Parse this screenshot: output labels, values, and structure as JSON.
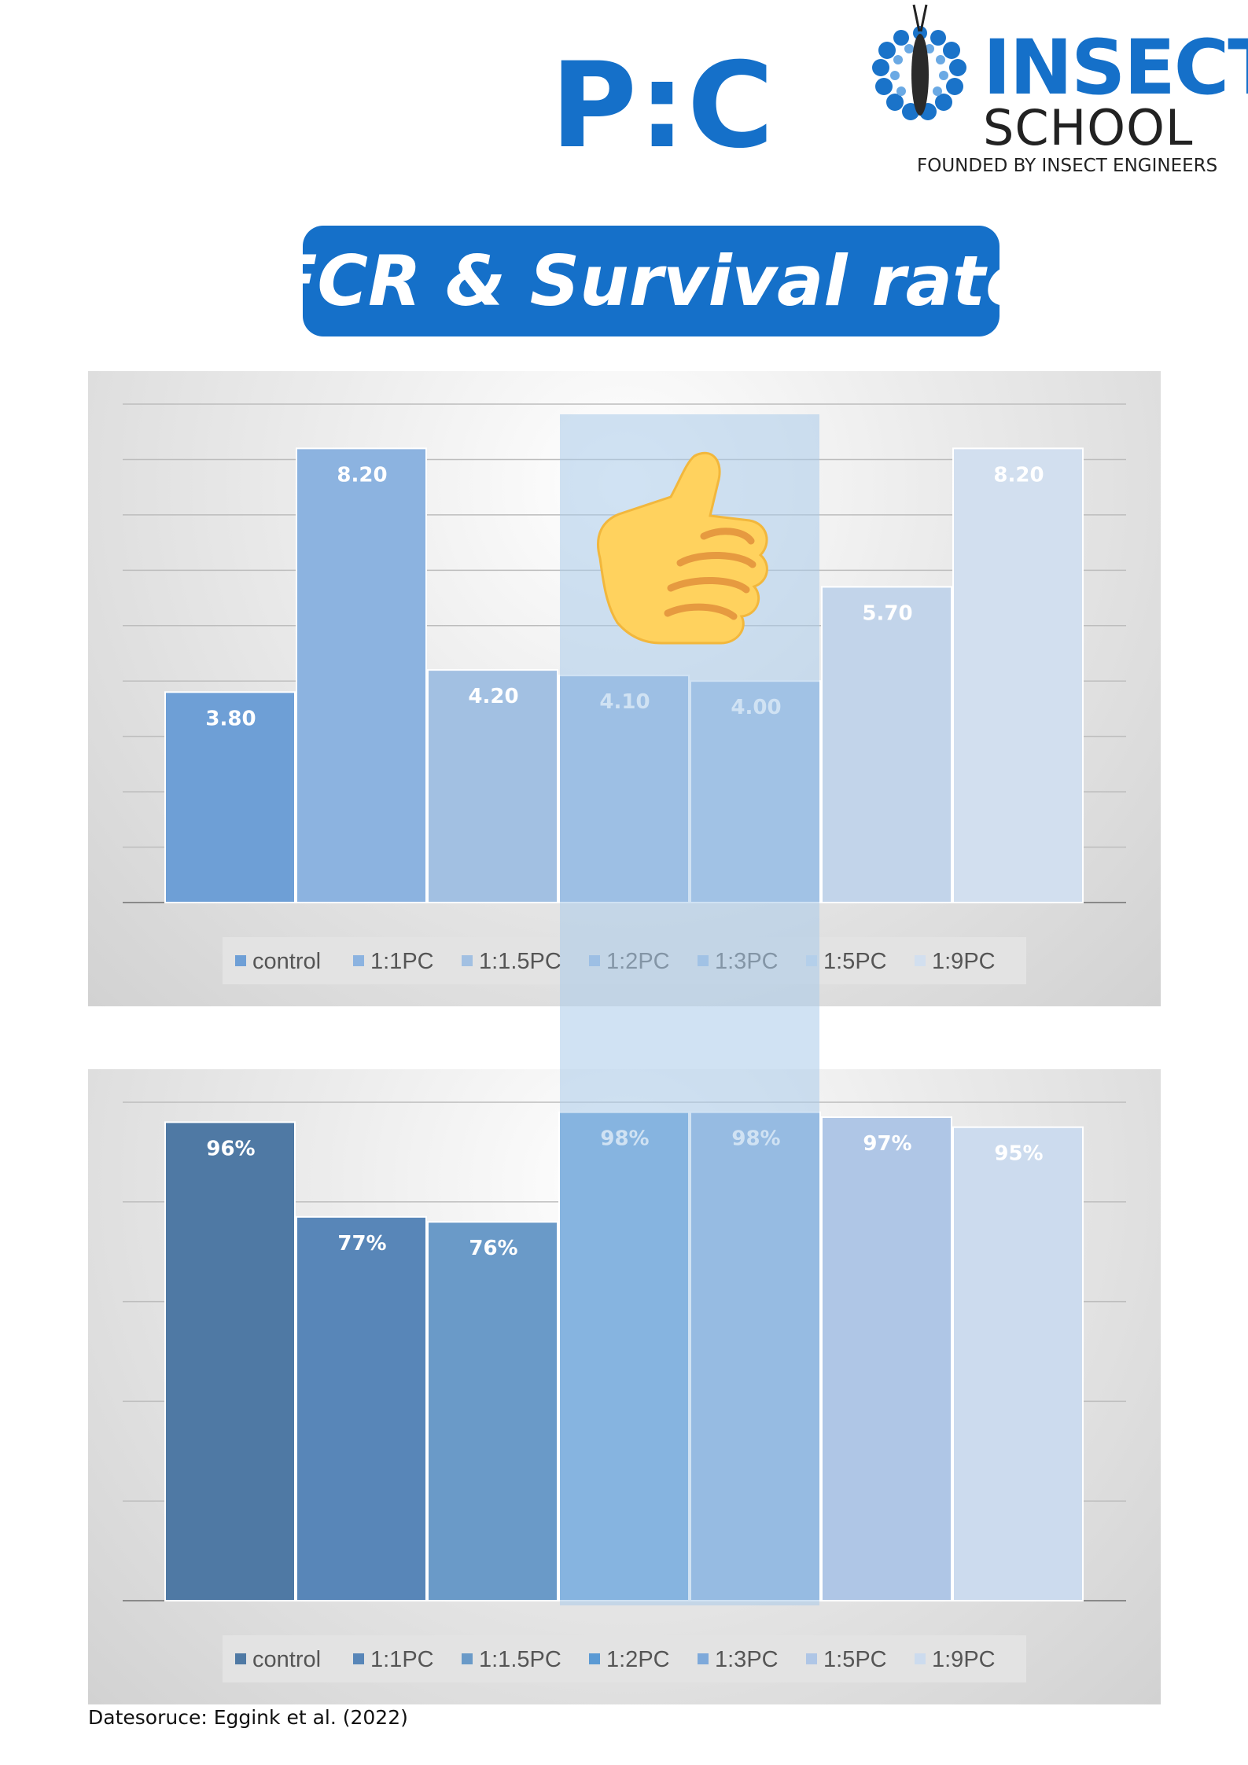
{
  "header": {
    "pc_title": "P:C"
  },
  "logo": {
    "brand": "INSECT",
    "school": "SCHOOL",
    "tagline": "FOUNDED BY INSECT ENGINEERS",
    "icon": "butterfly-ring-logo-icon"
  },
  "banner": {
    "title": "FCR & Survival rate"
  },
  "overlay_icon": "thumbs-up-icon",
  "colors": {
    "brand_blue": "#1570c9",
    "highlight": "#aacaea"
  },
  "chart_data": [
    {
      "type": "bar",
      "categories": [
        "control",
        "1:1PC",
        "1:1.5PC",
        "1:2PC",
        "1:3PC",
        "1:5PC",
        "1:9PC"
      ],
      "values": [
        3.8,
        8.2,
        4.2,
        4.1,
        4.0,
        5.7,
        8.2
      ],
      "data_labels": [
        "3.80",
        "8.20",
        "4.20",
        "4.10",
        "4.00",
        "5.70",
        "8.20"
      ],
      "colors": [
        "#6e9fd6",
        "#8cb3e0",
        "#a2c0e2",
        "#8eb2dd",
        "#98b9e0",
        "#c2d4ea",
        "#d2dfef"
      ],
      "ylim": [
        0,
        9
      ],
      "gridlines": 9,
      "legend": "bottom",
      "title": "",
      "xlabel": "",
      "ylabel": ""
    },
    {
      "type": "bar",
      "categories": [
        "control",
        "1:1PC",
        "1:1.5PC",
        "1:2PC",
        "1:3PC",
        "1:5PC",
        "1:9PC"
      ],
      "values": [
        96,
        77,
        76,
        98,
        98,
        97,
        95
      ],
      "data_labels": [
        "96%",
        "77%",
        "76%",
        "98%",
        "98%",
        "97%",
        "95%"
      ],
      "colors": [
        "#4f79a4",
        "#5886b8",
        "#6a9ac8",
        "#5b9ad4",
        "#7ea9da",
        "#afc6e6",
        "#ccdbee"
      ],
      "ylim": [
        0,
        100
      ],
      "gridlines": 5,
      "legend": "bottom",
      "title": "",
      "xlabel": "",
      "ylabel": ""
    }
  ],
  "source": "Datesoruce: Eggink et al. (2022)"
}
